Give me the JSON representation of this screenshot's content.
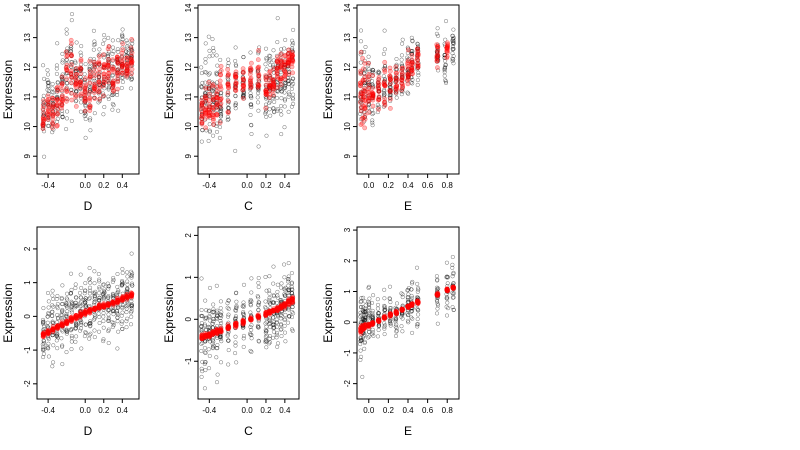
{
  "figure": {
    "background": "#ffffff"
  },
  "style": {
    "observed_color": "#000000",
    "fitted_color": "#ff0000"
  },
  "chart_data": [
    {
      "type": "scatter",
      "panel": "top-left",
      "xlabel": "D",
      "ylabel": "Expression",
      "xlim": [
        -0.52,
        0.58
      ],
      "ylim": [
        8.4,
        14.1
      ],
      "xticks": [
        -0.4,
        0.0,
        0.2,
        0.4
      ],
      "xtick_labels": [
        "-0.4",
        "0.0",
        "0.2",
        "0.4"
      ],
      "yticks": [
        9,
        10,
        11,
        12,
        13,
        14
      ],
      "ytick_labels": [
        "9",
        "10",
        "11",
        "12",
        "13",
        "14"
      ],
      "series": [
        {
          "role": "observed",
          "marker": "open-circle",
          "x_points": [
            -0.45,
            -0.4,
            -0.35,
            -0.3,
            -0.25,
            -0.2,
            -0.15,
            -0.1,
            -0.05,
            0.0,
            0.05,
            0.1,
            0.15,
            0.2,
            0.25,
            0.3,
            0.35,
            0.4,
            0.45,
            0.5
          ],
          "y_center": [
            10.5,
            10.8,
            10.6,
            11.0,
            11.3,
            11.9,
            12.0,
            11.6,
            11.8,
            11.2,
            11.3,
            11.8,
            11.6,
            11.7,
            11.9,
            11.6,
            12.0,
            12.2,
            12.1,
            12.3
          ],
          "y_spread": [
            1.2,
            1.3,
            1.1,
            1.2,
            1.3,
            1.4,
            1.4,
            1.3,
            1.3,
            1.3,
            1.5,
            1.4,
            1.3,
            1.4,
            1.2,
            1.3,
            1.2,
            1.1,
            1.0,
            1.0
          ]
        },
        {
          "role": "fitted",
          "marker": "filled-circle",
          "x_points": [
            -0.45,
            -0.4,
            -0.35,
            -0.3,
            -0.25,
            -0.2,
            -0.15,
            -0.1,
            -0.05,
            0.0,
            0.05,
            0.1,
            0.15,
            0.2,
            0.25,
            0.3,
            0.35,
            0.4,
            0.45,
            0.5
          ],
          "y_center": [
            10.3,
            10.6,
            10.5,
            10.8,
            11.1,
            11.9,
            12.0,
            11.5,
            11.7,
            11.1,
            11.2,
            11.7,
            11.5,
            11.7,
            11.9,
            11.6,
            12.0,
            12.2,
            12.0,
            12.2
          ],
          "y_spread": [
            0.7,
            0.6,
            0.6,
            0.7,
            0.8,
            0.9,
            0.9,
            0.8,
            0.8,
            0.6,
            0.7,
            0.9,
            0.8,
            0.9,
            0.8,
            0.8,
            0.7,
            0.6,
            0.5,
            0.5
          ]
        }
      ]
    },
    {
      "type": "scatter",
      "panel": "top-middle",
      "xlabel": "C",
      "ylabel": "Expression",
      "xlim": [
        -0.52,
        0.55
      ],
      "ylim": [
        8.4,
        14.1
      ],
      "xticks": [
        -0.4,
        0.0,
        0.2,
        0.4
      ],
      "xtick_labels": [
        "-0.4",
        "0.0",
        "0.2",
        "0.4"
      ],
      "yticks": [
        9,
        10,
        11,
        12,
        13,
        14
      ],
      "ytick_labels": [
        "9",
        "10",
        "11",
        "12",
        "13",
        "14"
      ],
      "series": [
        {
          "role": "observed",
          "marker": "open-circle",
          "x_points": [
            -0.48,
            -0.44,
            -0.4,
            -0.36,
            -0.32,
            -0.28,
            -0.2,
            -0.12,
            -0.04,
            0.04,
            0.12,
            0.2,
            0.24,
            0.28,
            0.32,
            0.36,
            0.4,
            0.44,
            0.48
          ],
          "y_center": [
            10.8,
            10.9,
            11.0,
            10.8,
            10.9,
            11.0,
            11.2,
            11.3,
            11.2,
            11.3,
            11.4,
            11.3,
            11.5,
            11.4,
            11.6,
            11.5,
            11.7,
            11.8,
            11.9
          ],
          "y_spread": [
            1.4,
            1.4,
            1.5,
            1.4,
            1.3,
            1.3,
            1.3,
            1.2,
            1.2,
            1.2,
            1.3,
            1.4,
            1.4,
            1.3,
            1.4,
            1.4,
            1.3,
            1.3,
            1.3
          ]
        },
        {
          "role": "fitted",
          "marker": "filled-circle",
          "x_points": [
            -0.48,
            -0.44,
            -0.4,
            -0.36,
            -0.32,
            -0.28,
            -0.2,
            -0.12,
            -0.04,
            0.04,
            0.12,
            0.2,
            0.24,
            0.28,
            0.32,
            0.36,
            0.4,
            0.44,
            0.48
          ],
          "y_center": [
            10.5,
            10.6,
            11.0,
            10.6,
            10.8,
            11.1,
            11.3,
            11.6,
            11.5,
            11.6,
            11.7,
            11.2,
            11.3,
            11.4,
            11.9,
            12.0,
            12.1,
            12.2,
            12.3
          ],
          "y_spread": [
            0.9,
            0.9,
            0.9,
            0.8,
            0.8,
            0.8,
            0.7,
            0.6,
            0.6,
            0.6,
            0.7,
            0.6,
            0.5,
            0.5,
            0.6,
            0.6,
            0.6,
            0.5,
            0.5
          ]
        }
      ]
    },
    {
      "type": "scatter",
      "panel": "top-right",
      "xlabel": "E",
      "ylabel": "Expression",
      "xlim": [
        -0.12,
        0.92
      ],
      "ylim": [
        8.4,
        14.1
      ],
      "xticks": [
        0.0,
        0.2,
        0.4,
        0.6,
        0.8
      ],
      "xtick_labels": [
        "0.0",
        "0.2",
        "0.4",
        "0.6",
        "0.8"
      ],
      "yticks": [
        9,
        10,
        11,
        12,
        13,
        14
      ],
      "ytick_labels": [
        "9",
        "10",
        "11",
        "12",
        "13",
        "14"
      ],
      "series": [
        {
          "role": "observed",
          "marker": "open-circle",
          "x_points": [
            -0.08,
            -0.04,
            0.0,
            0.04,
            0.1,
            0.16,
            0.22,
            0.28,
            0.34,
            0.4,
            0.44,
            0.5,
            0.7,
            0.78,
            0.86
          ],
          "y_center": [
            11.0,
            11.2,
            11.3,
            11.2,
            11.2,
            11.4,
            11.3,
            11.6,
            11.8,
            12.0,
            12.1,
            12.3,
            12.4,
            12.2,
            12.6
          ],
          "y_spread": [
            1.8,
            1.6,
            1.4,
            1.2,
            1.0,
            1.0,
            0.9,
            0.9,
            0.9,
            0.9,
            0.8,
            0.8,
            0.8,
            1.0,
            0.9
          ]
        },
        {
          "role": "fitted",
          "marker": "filled-circle",
          "x_points": [
            -0.08,
            -0.06,
            -0.04,
            0.0,
            0.04,
            0.1,
            0.16,
            0.22,
            0.28,
            0.34,
            0.4,
            0.44,
            0.5,
            0.7,
            0.8
          ],
          "y_center": [
            11.2,
            11.0,
            11.2,
            11.3,
            11.1,
            11.2,
            11.3,
            11.5,
            11.6,
            11.7,
            11.9,
            12.0,
            12.2,
            12.4,
            12.6
          ],
          "y_spread": [
            1.6,
            1.7,
            1.0,
            0.9,
            0.7,
            0.6,
            0.6,
            0.6,
            0.5,
            0.5,
            0.5,
            0.5,
            0.4,
            0.4,
            0.3
          ]
        }
      ]
    },
    {
      "type": "scatter",
      "panel": "bottom-left",
      "xlabel": "D",
      "ylabel": "Expression",
      "xlim": [
        -0.52,
        0.58
      ],
      "ylim": [
        -2.45,
        2.65
      ],
      "xticks": [
        -0.4,
        0.0,
        0.2,
        0.4
      ],
      "xtick_labels": [
        "-0.4",
        "0.0",
        "0.2",
        "0.4"
      ],
      "yticks": [
        -2,
        -1,
        0,
        1,
        2
      ],
      "ytick_labels": [
        "-2",
        "-1",
        "0",
        "1",
        "2"
      ],
      "series": [
        {
          "role": "observed",
          "marker": "open-circle",
          "x_points": [
            -0.45,
            -0.4,
            -0.35,
            -0.3,
            -0.25,
            -0.2,
            -0.15,
            -0.1,
            -0.05,
            0.0,
            0.05,
            0.1,
            0.15,
            0.2,
            0.25,
            0.3,
            0.35,
            0.4,
            0.45,
            0.5
          ],
          "y_center": [
            -0.5,
            -0.4,
            -0.3,
            -0.2,
            -0.1,
            0.0,
            0.0,
            0.1,
            0.1,
            0.2,
            0.2,
            0.3,
            0.3,
            0.4,
            0.4,
            0.5,
            0.5,
            0.6,
            0.6,
            0.7
          ],
          "y_spread": [
            0.9,
            1.0,
            1.0,
            1.0,
            1.0,
            1.1,
            1.1,
            1.0,
            1.0,
            1.0,
            1.1,
            1.0,
            1.0,
            1.0,
            1.0,
            0.9,
            0.9,
            0.9,
            0.8,
            0.8
          ]
        },
        {
          "role": "fitted",
          "marker": "filled-circle",
          "x_points": [
            -0.45,
            -0.4,
            -0.35,
            -0.3,
            -0.25,
            -0.2,
            -0.15,
            -0.1,
            -0.05,
            0.0,
            0.05,
            0.1,
            0.15,
            0.2,
            0.25,
            0.3,
            0.35,
            0.4,
            0.45,
            0.5
          ],
          "y_center": [
            -0.55,
            -0.48,
            -0.4,
            -0.32,
            -0.25,
            -0.18,
            -0.1,
            -0.03,
            0.04,
            0.1,
            0.16,
            0.22,
            0.28,
            0.32,
            0.36,
            0.4,
            0.46,
            0.52,
            0.58,
            0.62
          ],
          "y_spread": [
            0.06,
            0.06,
            0.07,
            0.07,
            0.07,
            0.07,
            0.07,
            0.07,
            0.07,
            0.07,
            0.07,
            0.07,
            0.07,
            0.07,
            0.07,
            0.07,
            0.07,
            0.07,
            0.06,
            0.06
          ]
        }
      ]
    },
    {
      "type": "scatter",
      "panel": "bottom-middle",
      "xlabel": "C",
      "ylabel": "Expression",
      "xlim": [
        -0.52,
        0.55
      ],
      "ylim": [
        -1.9,
        2.2
      ],
      "xticks": [
        -0.4,
        0.0,
        0.2,
        0.4
      ],
      "xtick_labels": [
        "-0.4",
        "0.0",
        "0.2",
        "0.4"
      ],
      "yticks": [
        -1,
        0,
        1,
        2
      ],
      "ytick_labels": [
        "-1",
        "0",
        "1",
        "2"
      ],
      "series": [
        {
          "role": "observed",
          "marker": "open-circle",
          "x_points": [
            -0.48,
            -0.44,
            -0.4,
            -0.36,
            -0.32,
            -0.28,
            -0.2,
            -0.12,
            -0.04,
            0.04,
            0.12,
            0.2,
            0.24,
            0.28,
            0.32,
            0.36,
            0.4,
            0.44,
            0.48
          ],
          "y_center": [
            -0.4,
            -0.35,
            -0.3,
            -0.3,
            -0.25,
            -0.2,
            -0.15,
            -0.1,
            -0.05,
            0.0,
            0.05,
            0.1,
            0.15,
            0.2,
            0.25,
            0.3,
            0.35,
            0.4,
            0.45
          ],
          "y_spread": [
            0.9,
            0.9,
            0.9,
            0.8,
            0.8,
            0.8,
            0.8,
            0.8,
            0.8,
            0.8,
            0.8,
            0.8,
            0.8,
            0.8,
            0.8,
            0.8,
            0.8,
            0.8,
            0.8
          ]
        },
        {
          "role": "fitted",
          "marker": "filled-circle",
          "x_points": [
            -0.48,
            -0.44,
            -0.4,
            -0.36,
            -0.32,
            -0.28,
            -0.2,
            -0.12,
            -0.04,
            0.04,
            0.12,
            0.2,
            0.24,
            0.28,
            0.32,
            0.36,
            0.4,
            0.44,
            0.48
          ],
          "y_center": [
            -0.45,
            -0.4,
            -0.37,
            -0.33,
            -0.3,
            -0.26,
            -0.2,
            -0.13,
            -0.07,
            0.0,
            0.06,
            0.13,
            0.17,
            0.21,
            0.25,
            0.3,
            0.35,
            0.4,
            0.45
          ],
          "y_spread": [
            0.07,
            0.07,
            0.07,
            0.06,
            0.06,
            0.06,
            0.05,
            0.05,
            0.05,
            0.05,
            0.05,
            0.05,
            0.05,
            0.05,
            0.06,
            0.06,
            0.07,
            0.07,
            0.08
          ]
        }
      ]
    },
    {
      "type": "scatter",
      "panel": "bottom-right",
      "xlabel": "E",
      "ylabel": "Expression",
      "xlim": [
        -0.12,
        0.92
      ],
      "ylim": [
        -2.5,
        3.1
      ],
      "xticks": [
        0.0,
        0.2,
        0.4,
        0.6,
        0.8
      ],
      "xtick_labels": [
        "0.0",
        "0.2",
        "0.4",
        "0.6",
        "0.8"
      ],
      "yticks": [
        -2,
        -1,
        0,
        1,
        2,
        3
      ],
      "ytick_labels": [
        "-2",
        "-1",
        "0",
        "1",
        "2",
        "3"
      ],
      "series": [
        {
          "role": "observed",
          "marker": "open-circle",
          "x_points": [
            -0.08,
            -0.06,
            -0.04,
            0.0,
            0.04,
            0.1,
            0.16,
            0.22,
            0.28,
            0.34,
            0.4,
            0.44,
            0.5,
            0.7,
            0.8,
            0.86
          ],
          "y_center": [
            -0.2,
            -0.1,
            -0.1,
            0.0,
            0.0,
            0.1,
            0.2,
            0.3,
            0.3,
            0.4,
            0.5,
            0.6,
            0.7,
            0.9,
            1.1,
            1.1
          ],
          "y_spread": [
            1.2,
            1.0,
            0.9,
            0.8,
            0.7,
            0.7,
            0.6,
            0.6,
            0.6,
            0.6,
            0.6,
            0.7,
            0.8,
            0.8,
            0.9,
            0.7
          ]
        },
        {
          "role": "fitted",
          "marker": "filled-circle",
          "x_points": [
            -0.08,
            -0.06,
            -0.04,
            0.0,
            0.04,
            0.1,
            0.16,
            0.22,
            0.28,
            0.34,
            0.4,
            0.44,
            0.5,
            0.7,
            0.8,
            0.86
          ],
          "y_center": [
            -0.25,
            -0.2,
            -0.15,
            -0.1,
            -0.05,
            0.05,
            0.15,
            0.25,
            0.3,
            0.4,
            0.5,
            0.58,
            0.65,
            0.9,
            1.05,
            1.12
          ],
          "y_spread": [
            0.12,
            0.1,
            0.08,
            0.07,
            0.06,
            0.05,
            0.05,
            0.05,
            0.05,
            0.05,
            0.05,
            0.05,
            0.05,
            0.05,
            0.05,
            0.05
          ]
        }
      ]
    }
  ]
}
